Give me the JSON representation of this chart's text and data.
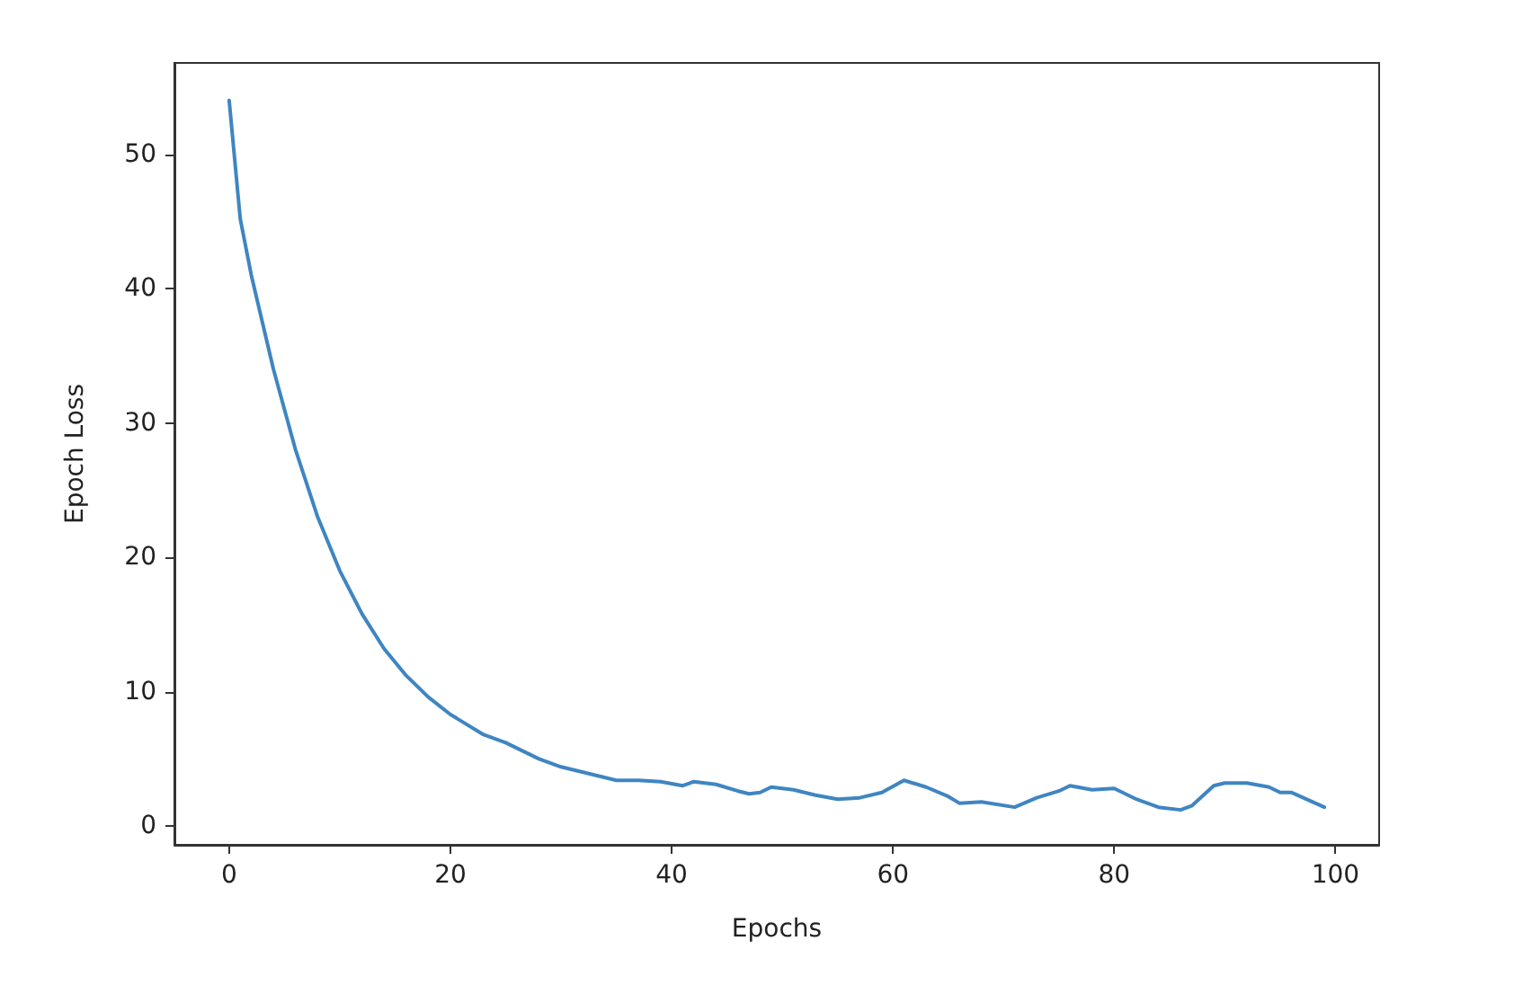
{
  "chart_data": {
    "type": "line",
    "xlabel": "Epochs",
    "ylabel": "Epoch Loss",
    "xlim": [
      -4.95,
      103.95
    ],
    "xticks": [
      0,
      20,
      40,
      60,
      80,
      100
    ],
    "ylim": [
      -1.4,
      56.8
    ],
    "yticks": [
      0,
      10,
      20,
      30,
      40,
      50
    ],
    "grid": false,
    "marker": "none",
    "line_style": "solid",
    "series": [
      {
        "color": "#3f85c2",
        "x": [
          0,
          1,
          2,
          3,
          4,
          5,
          6,
          7,
          8,
          10,
          12,
          14,
          16,
          18,
          20,
          23,
          25,
          28,
          30,
          33,
          35,
          37,
          39,
          41,
          42,
          44,
          46,
          47,
          48,
          49,
          51,
          53,
          55,
          57,
          59,
          61,
          63,
          65,
          66,
          68,
          71,
          73,
          75,
          76,
          78,
          80,
          82,
          84,
          86,
          87,
          89,
          90,
          92,
          94,
          95,
          96,
          99
        ],
        "values": [
          54,
          45.2,
          41,
          37.5,
          34,
          31,
          28,
          25.5,
          23,
          19,
          15.8,
          13.2,
          11.2,
          9.6,
          8.3,
          6.8,
          6.2,
          5,
          4.4,
          3.8,
          3.4,
          3.4,
          3.3,
          3,
          3.3,
          3.1,
          2.6,
          2.4,
          2.5,
          2.9,
          2.7,
          2.3,
          2,
          2.1,
          2.5,
          3.4,
          2.9,
          2.2,
          1.7,
          1.8,
          1.4,
          2.1,
          2.6,
          3,
          2.7,
          2.8,
          2,
          1.4,
          1.2,
          1.5,
          3,
          3.2,
          3.2,
          2.9,
          2.5,
          2.5,
          1.4
        ]
      }
    ]
  }
}
